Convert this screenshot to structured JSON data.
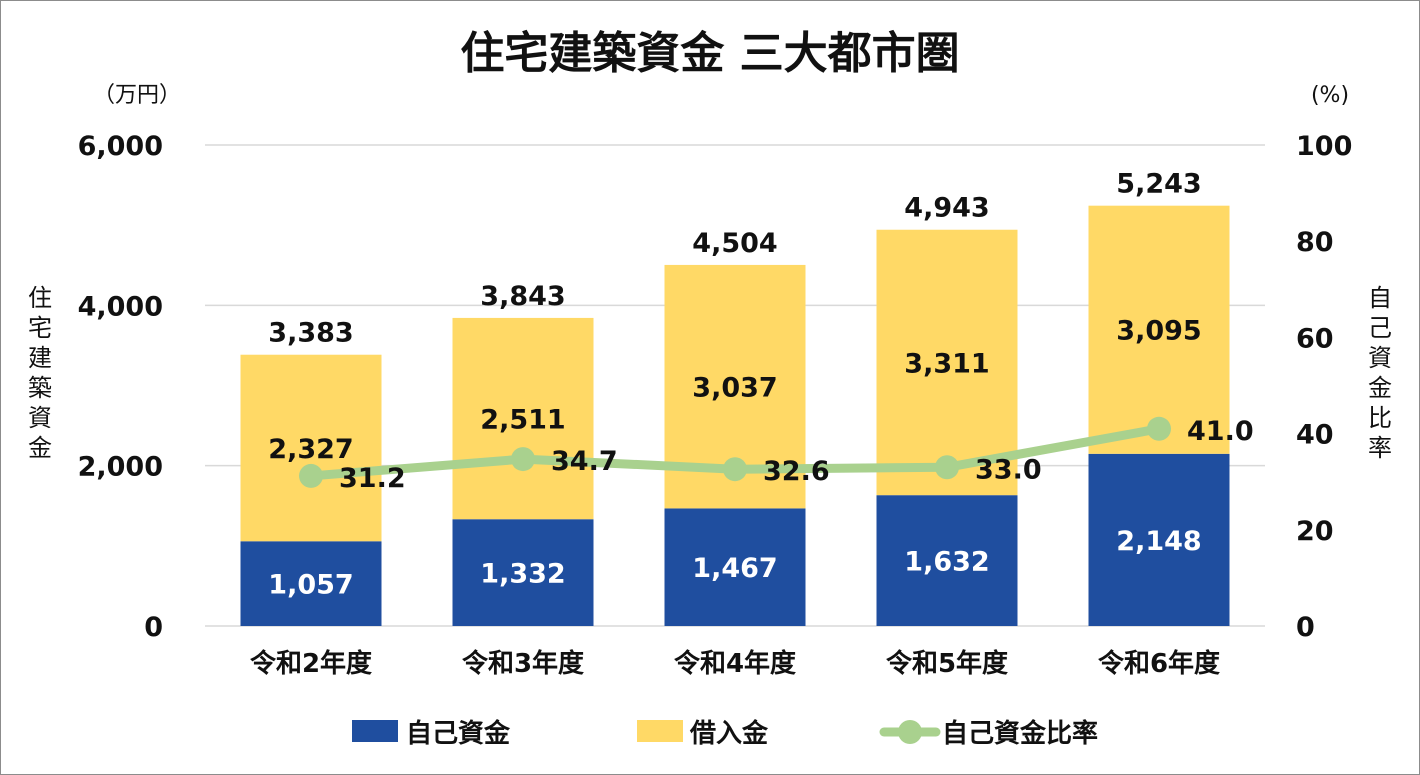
{
  "chart_data": {
    "type": "bar",
    "title": "住宅建築資金 三大都市圏",
    "categories": [
      "令和2年度",
      "令和3年度",
      "令和4年度",
      "令和5年度",
      "令和6年度"
    ],
    "series": [
      {
        "name": "自己資金",
        "kind": "stacked-bar",
        "axis": "left",
        "color": "#1f4e9f",
        "values": [
          1057,
          1332,
          1467,
          1632,
          2148
        ],
        "labels": [
          "1,057",
          "1,332",
          "1,467",
          "1,632",
          "2,148"
        ]
      },
      {
        "name": "借入金",
        "kind": "stacked-bar",
        "axis": "left",
        "color": "#ffd966",
        "values": [
          2327,
          2511,
          3037,
          3311,
          3095
        ],
        "labels": [
          "2,327",
          "2,511",
          "3,037",
          "3,311",
          "3,095"
        ]
      },
      {
        "name": "自己資金比率",
        "kind": "line",
        "axis": "right",
        "color": "#a9d18e",
        "values": [
          31.2,
          34.7,
          32.6,
          33.0,
          41.0
        ],
        "labels": [
          "31.2",
          "34.7",
          "32.6",
          "33.0",
          "41.0"
        ]
      }
    ],
    "totals": [
      3383,
      3843,
      4504,
      4943,
      5243
    ],
    "total_labels": [
      "3,383",
      "3,843",
      "4,504",
      "4,943",
      "5,243"
    ],
    "y_left": {
      "unit": "（万円）",
      "label": "住宅建築資金",
      "lim": [
        0,
        6000
      ],
      "ticks": [
        0,
        2000,
        4000,
        6000
      ],
      "tick_labels": [
        "0",
        "2,000",
        "4,000",
        "6,000"
      ]
    },
    "y_right": {
      "unit": "(%)",
      "label": "自己資金比率",
      "lim": [
        0,
        100
      ],
      "ticks": [
        0,
        20,
        40,
        60,
        80,
        100
      ],
      "tick_labels": [
        "0",
        "20",
        "40",
        "60",
        "80",
        "100"
      ]
    },
    "grid": true,
    "legend_position": "bottom"
  }
}
